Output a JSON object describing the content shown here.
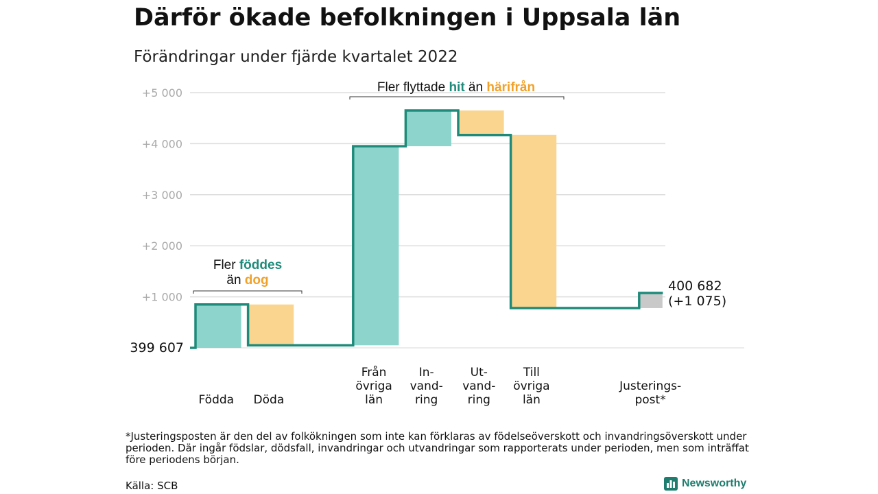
{
  "title": "Därför ökade befolkningen i Uppsala län",
  "subtitle": "Förändringar under fjärde kvartalet 2022",
  "colors": {
    "green": "#8dd5cc",
    "orange": "#fad58f",
    "gray": "#c9c9c9",
    "line": "#1e8b7a",
    "green_text": "#1e8b7a",
    "orange_text": "#f2a128",
    "grid": "#dddddd",
    "tick": "#aaaaaa"
  },
  "annotations": {
    "births": {
      "pre": "Fler ",
      "hi": "föddes",
      "line2_pre": "än ",
      "line2_hi": "dog"
    },
    "moves": {
      "pre": "Fler flyttade ",
      "hi1": "hit",
      "mid": " än ",
      "hi2": "härifrån"
    }
  },
  "chart_data": {
    "type": "waterfall",
    "start_value": 399607,
    "start_label": "399 607",
    "end_label": "400 682",
    "end_change_label": "(+1 075)",
    "y_ticks": [
      "+1 000",
      "+2 000",
      "+3 000",
      "+4 000",
      "+5 000"
    ],
    "ylim": [
      0,
      5000
    ],
    "categories": [
      {
        "label": [
          "Födda"
        ],
        "from": 0,
        "to": 850,
        "color": "green"
      },
      {
        "label": [
          "Döda"
        ],
        "from": 850,
        "to": 50,
        "color": "orange"
      },
      {
        "label": [],
        "from": 50,
        "to": 50,
        "color": "none"
      },
      {
        "label": [
          "Från",
          "övriga",
          "län"
        ],
        "from": 50,
        "to": 3950,
        "color": "green"
      },
      {
        "label": [
          "In-",
          "vand-",
          "ring"
        ],
        "from": 3950,
        "to": 4650,
        "color": "green"
      },
      {
        "label": [
          "Ut-",
          "vand-",
          "ring"
        ],
        "from": 4650,
        "to": 4170,
        "color": "orange"
      },
      {
        "label": [
          "Till",
          "övriga",
          "län"
        ],
        "from": 4170,
        "to": 780,
        "color": "orange"
      },
      {
        "label": [],
        "from": 780,
        "to": 780,
        "color": "none"
      },
      {
        "label": [
          "Justerings-",
          "post*"
        ],
        "from": 780,
        "to": 1075,
        "color": "gray"
      }
    ],
    "end_value": 1075
  },
  "footnote": "*Justeringsposten är den del av folkökningen som inte kan förklaras av födelseöverskott och invandringsöverskott under perioden. Där ingår födslar, dödsfall, invandringar och utvandringar som rapporterats under perioden, men som inträffat före periodens början.",
  "source": "Källa: SCB",
  "logo_text": "Newsworthy",
  "logo_icon": "bar-chart-icon"
}
